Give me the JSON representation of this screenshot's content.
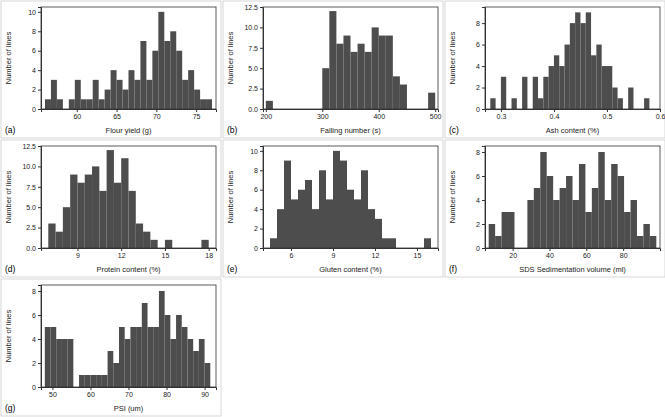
{
  "chart_data": [
    {
      "type": "histogram",
      "label": "(a)",
      "x_label": "Flour yield (g)",
      "y_label": "Number of lines",
      "color": "#4d4d4d",
      "bins": [
        56,
        56.75,
        57.5,
        58.25,
        59,
        59.75,
        60.5,
        61.25,
        62,
        62.75,
        63.5,
        64.25,
        65,
        65.75,
        66.5,
        67.25,
        68,
        68.75,
        69.5,
        70.25,
        71,
        71.75,
        72.5,
        73.25,
        74,
        74.75,
        75.5,
        76.25,
        77
      ],
      "values": [
        1,
        3,
        1,
        0,
        1,
        3,
        1,
        1,
        3,
        1,
        2,
        4,
        3,
        2,
        4,
        3,
        7,
        3,
        6,
        10,
        7,
        8,
        6,
        3,
        4,
        2,
        1,
        1
      ],
      "xlim": [
        55.5,
        77.5
      ],
      "xticks": [
        60,
        65,
        70,
        75
      ],
      "ylim": [
        0,
        10.5
      ],
      "yticks": [
        0,
        2,
        4,
        6,
        8,
        10
      ]
    },
    {
      "type": "histogram",
      "label": "(b)",
      "x_label": "Falling number (s)",
      "y_label": "Number of lines",
      "color": "#4d4d4d",
      "bins": [
        200,
        212.5,
        225,
        237.5,
        250,
        262.5,
        275,
        287.5,
        300,
        312.5,
        325,
        337.5,
        350,
        362.5,
        375,
        387.5,
        400,
        412.5,
        425,
        437.5,
        450,
        462.5,
        475,
        487.5,
        500
      ],
      "values": [
        1,
        0,
        0,
        0,
        0,
        0,
        0,
        0,
        5,
        12,
        8,
        9,
        7,
        8,
        7,
        10,
        9,
        9,
        4,
        3,
        0,
        0,
        0,
        2
      ],
      "xlim": [
        195,
        505
      ],
      "xticks": [
        200,
        300,
        400,
        500
      ],
      "ylim": [
        0,
        12.5
      ],
      "yticks": [
        {
          "value": 0,
          "label": "0.0"
        },
        {
          "value": 2.5,
          "label": "2.5"
        },
        {
          "value": 5,
          "label": "5.0"
        },
        {
          "value": 7.5,
          "label": "7.5"
        },
        {
          "value": 10,
          "label": "10.0"
        },
        {
          "value": 12.5,
          "label": "12.5"
        }
      ]
    },
    {
      "type": "histogram",
      "label": "(c)",
      "x_label": "Ash content (%)",
      "y_label": "Number of lines",
      "color": "#4d4d4d",
      "bins": [
        0.28,
        0.29,
        0.3,
        0.31,
        0.32,
        0.33,
        0.34,
        0.35,
        0.36,
        0.37,
        0.38,
        0.39,
        0.4,
        0.41,
        0.42,
        0.43,
        0.44,
        0.45,
        0.46,
        0.47,
        0.48,
        0.49,
        0.5,
        0.51,
        0.52,
        0.53,
        0.54,
        0.55,
        0.56,
        0.57,
        0.58
      ],
      "values": [
        1,
        0,
        3,
        0,
        1,
        0,
        3,
        0,
        3,
        1,
        3,
        4,
        5,
        4,
        6,
        8,
        9,
        8,
        9,
        5,
        6,
        4,
        4,
        2,
        1,
        0,
        2,
        0,
        0,
        1
      ],
      "xlim": [
        0.27,
        0.6
      ],
      "xticks": [
        0.3,
        0.4,
        0.5,
        0.6
      ],
      "ylim": [
        0,
        9.5
      ],
      "yticks": [
        0,
        2,
        4,
        6,
        8
      ]
    },
    {
      "type": "histogram",
      "label": "(d)",
      "x_label": "Protein content (%)",
      "y_label": "Number of lines",
      "color": "#4d4d4d",
      "bins": [
        7,
        7.5,
        8,
        8.5,
        9,
        9.5,
        10,
        10.5,
        11,
        11.5,
        12,
        12.5,
        13,
        13.5,
        14,
        14.5,
        15,
        15.5,
        16,
        16.5,
        17,
        17.5,
        18
      ],
      "values": [
        3,
        2,
        5,
        9,
        8,
        9,
        10,
        7,
        12,
        8,
        11,
        7,
        3,
        2,
        1,
        0,
        1,
        0,
        0,
        0,
        0,
        1
      ],
      "xlim": [
        6.5,
        18.5
      ],
      "xticks": [
        9,
        12,
        15,
        18
      ],
      "ylim": [
        0,
        12.5
      ],
      "yticks": [
        {
          "value": 0,
          "label": "0.0"
        },
        {
          "value": 2.5,
          "label": "2.5"
        },
        {
          "value": 5,
          "label": "5.0"
        },
        {
          "value": 7.5,
          "label": "7.5"
        },
        {
          "value": 10,
          "label": "10.0"
        },
        {
          "value": 12.5,
          "label": "12.5"
        }
      ]
    },
    {
      "type": "histogram",
      "label": "(e)",
      "x_label": "Gluten content (%)",
      "y_label": "Number of lines",
      "color": "#4d4d4d",
      "bins": [
        4.5,
        5,
        5.5,
        6,
        6.5,
        7,
        7.5,
        8,
        8.5,
        9,
        9.5,
        10,
        10.5,
        11,
        11.5,
        12,
        12.5,
        13,
        13.5,
        14,
        14.5,
        15,
        15.5,
        16
      ],
      "values": [
        1,
        4,
        9,
        5,
        6,
        7,
        4,
        8,
        5,
        10,
        9,
        6,
        5,
        8,
        4,
        3,
        1,
        1,
        0,
        0,
        0,
        0,
        1
      ],
      "xlim": [
        4,
        16.5
      ],
      "xticks": [
        6,
        9,
        12,
        15
      ],
      "ylim": [
        0,
        10.5
      ],
      "yticks": [
        0,
        2,
        4,
        6,
        8,
        10
      ]
    },
    {
      "type": "histogram",
      "label": "(f)",
      "x_label": "SDS Sedimentation volume (ml)",
      "y_label": "Number of lines",
      "color": "#4d4d4d",
      "bins": [
        7,
        10.5,
        14,
        17.5,
        21,
        24.5,
        28,
        31.5,
        35,
        38.5,
        42,
        45.5,
        49,
        52.5,
        56,
        59.5,
        63,
        66.5,
        70,
        73.5,
        77,
        80.5,
        84,
        87.5,
        91,
        94.5,
        98
      ],
      "values": [
        2,
        1,
        3,
        3,
        0,
        0,
        4,
        5,
        8,
        6,
        4,
        5,
        6,
        4,
        7,
        3,
        5,
        8,
        4,
        7,
        6,
        3,
        4,
        1,
        2,
        1
      ],
      "xlim": [
        5,
        100
      ],
      "xticks": [
        20,
        40,
        60,
        80
      ],
      "ylim": [
        0,
        8.5
      ],
      "yticks": [
        0,
        2,
        4,
        6,
        8
      ]
    },
    {
      "type": "histogram",
      "label": "(g)",
      "x_label": "PSI (um)",
      "y_label": "Number of lines",
      "color": "#4d4d4d",
      "bins": [
        48,
        49.5,
        51,
        52.5,
        54,
        55.5,
        57,
        58.5,
        60,
        61.5,
        63,
        64.5,
        66,
        67.5,
        69,
        70.5,
        72,
        73.5,
        75,
        76.5,
        78,
        79.5,
        81,
        82.5,
        84,
        85.5,
        87,
        88.5,
        90,
        91.5
      ],
      "values": [
        5,
        5,
        4,
        4,
        4,
        0,
        1,
        1,
        1,
        1,
        1,
        3,
        2,
        5,
        4,
        5,
        5,
        7,
        5,
        5,
        8,
        6,
        4,
        6,
        5,
        4,
        3,
        4,
        2
      ],
      "xlim": [
        47,
        93
      ],
      "xticks": [
        50,
        60,
        70,
        80,
        90
      ],
      "ylim": [
        0,
        8.5
      ],
      "yticks": [
        0,
        2,
        4,
        6,
        8
      ]
    }
  ]
}
